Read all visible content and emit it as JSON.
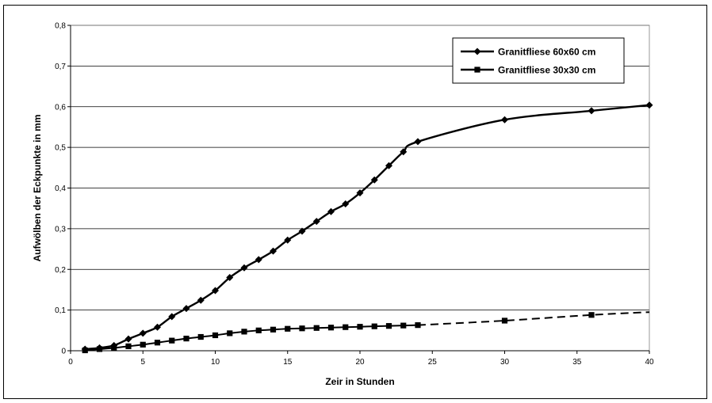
{
  "chart_data": {
    "type": "line",
    "title": "",
    "xlabel": "Zeir in Stunden",
    "ylabel": "Aufwölben der Eckpunkte in mm",
    "xlim": [
      0,
      40
    ],
    "ylim": [
      0,
      0.8
    ],
    "x_ticks": [
      "0",
      "5",
      "10",
      "15",
      "20",
      "25",
      "30",
      "35",
      "40"
    ],
    "y_ticks": [
      "0",
      "0,1",
      "0,2",
      "0,3",
      "0,4",
      "0,5",
      "0,6",
      "0,7",
      "0,8"
    ],
    "grid": "horizontal",
    "legend_position": "top-right",
    "series": [
      {
        "name": "Granitfliese 60x60 cm",
        "marker": "diamond",
        "line_style": "solid",
        "color": "#000000",
        "x": [
          1,
          2,
          3,
          4,
          5,
          6,
          7,
          8,
          9,
          10,
          11,
          12,
          13,
          14,
          15,
          16,
          17,
          18,
          19,
          20,
          21,
          22,
          23,
          24,
          30,
          36,
          40
        ],
        "y": [
          0.004,
          0.007,
          0.013,
          0.029,
          0.043,
          0.058,
          0.084,
          0.104,
          0.124,
          0.148,
          0.18,
          0.204,
          0.224,
          0.245,
          0.272,
          0.294,
          0.318,
          0.342,
          0.361,
          0.388,
          0.42,
          0.455,
          0.489,
          0.514,
          0.568,
          0.59,
          0.604
        ]
      },
      {
        "name": "Granitfliese 30x30 cm",
        "marker": "square",
        "line_style": "solid-then-dashed",
        "color": "#000000",
        "x": [
          1,
          2,
          3,
          4,
          5,
          6,
          7,
          8,
          9,
          10,
          11,
          12,
          13,
          14,
          15,
          16,
          17,
          18,
          19,
          20,
          21,
          22,
          23,
          24,
          30,
          36,
          40
        ],
        "y": [
          0.001,
          0.004,
          0.007,
          0.011,
          0.015,
          0.02,
          0.025,
          0.03,
          0.034,
          0.038,
          0.043,
          0.047,
          0.05,
          0.052,
          0.054,
          0.055,
          0.056,
          0.057,
          0.058,
          0.059,
          0.06,
          0.061,
          0.062,
          0.063,
          0.074,
          0.088,
          0.095
        ],
        "markers_to_x": 36,
        "dashed_from_x": 24
      }
    ]
  }
}
